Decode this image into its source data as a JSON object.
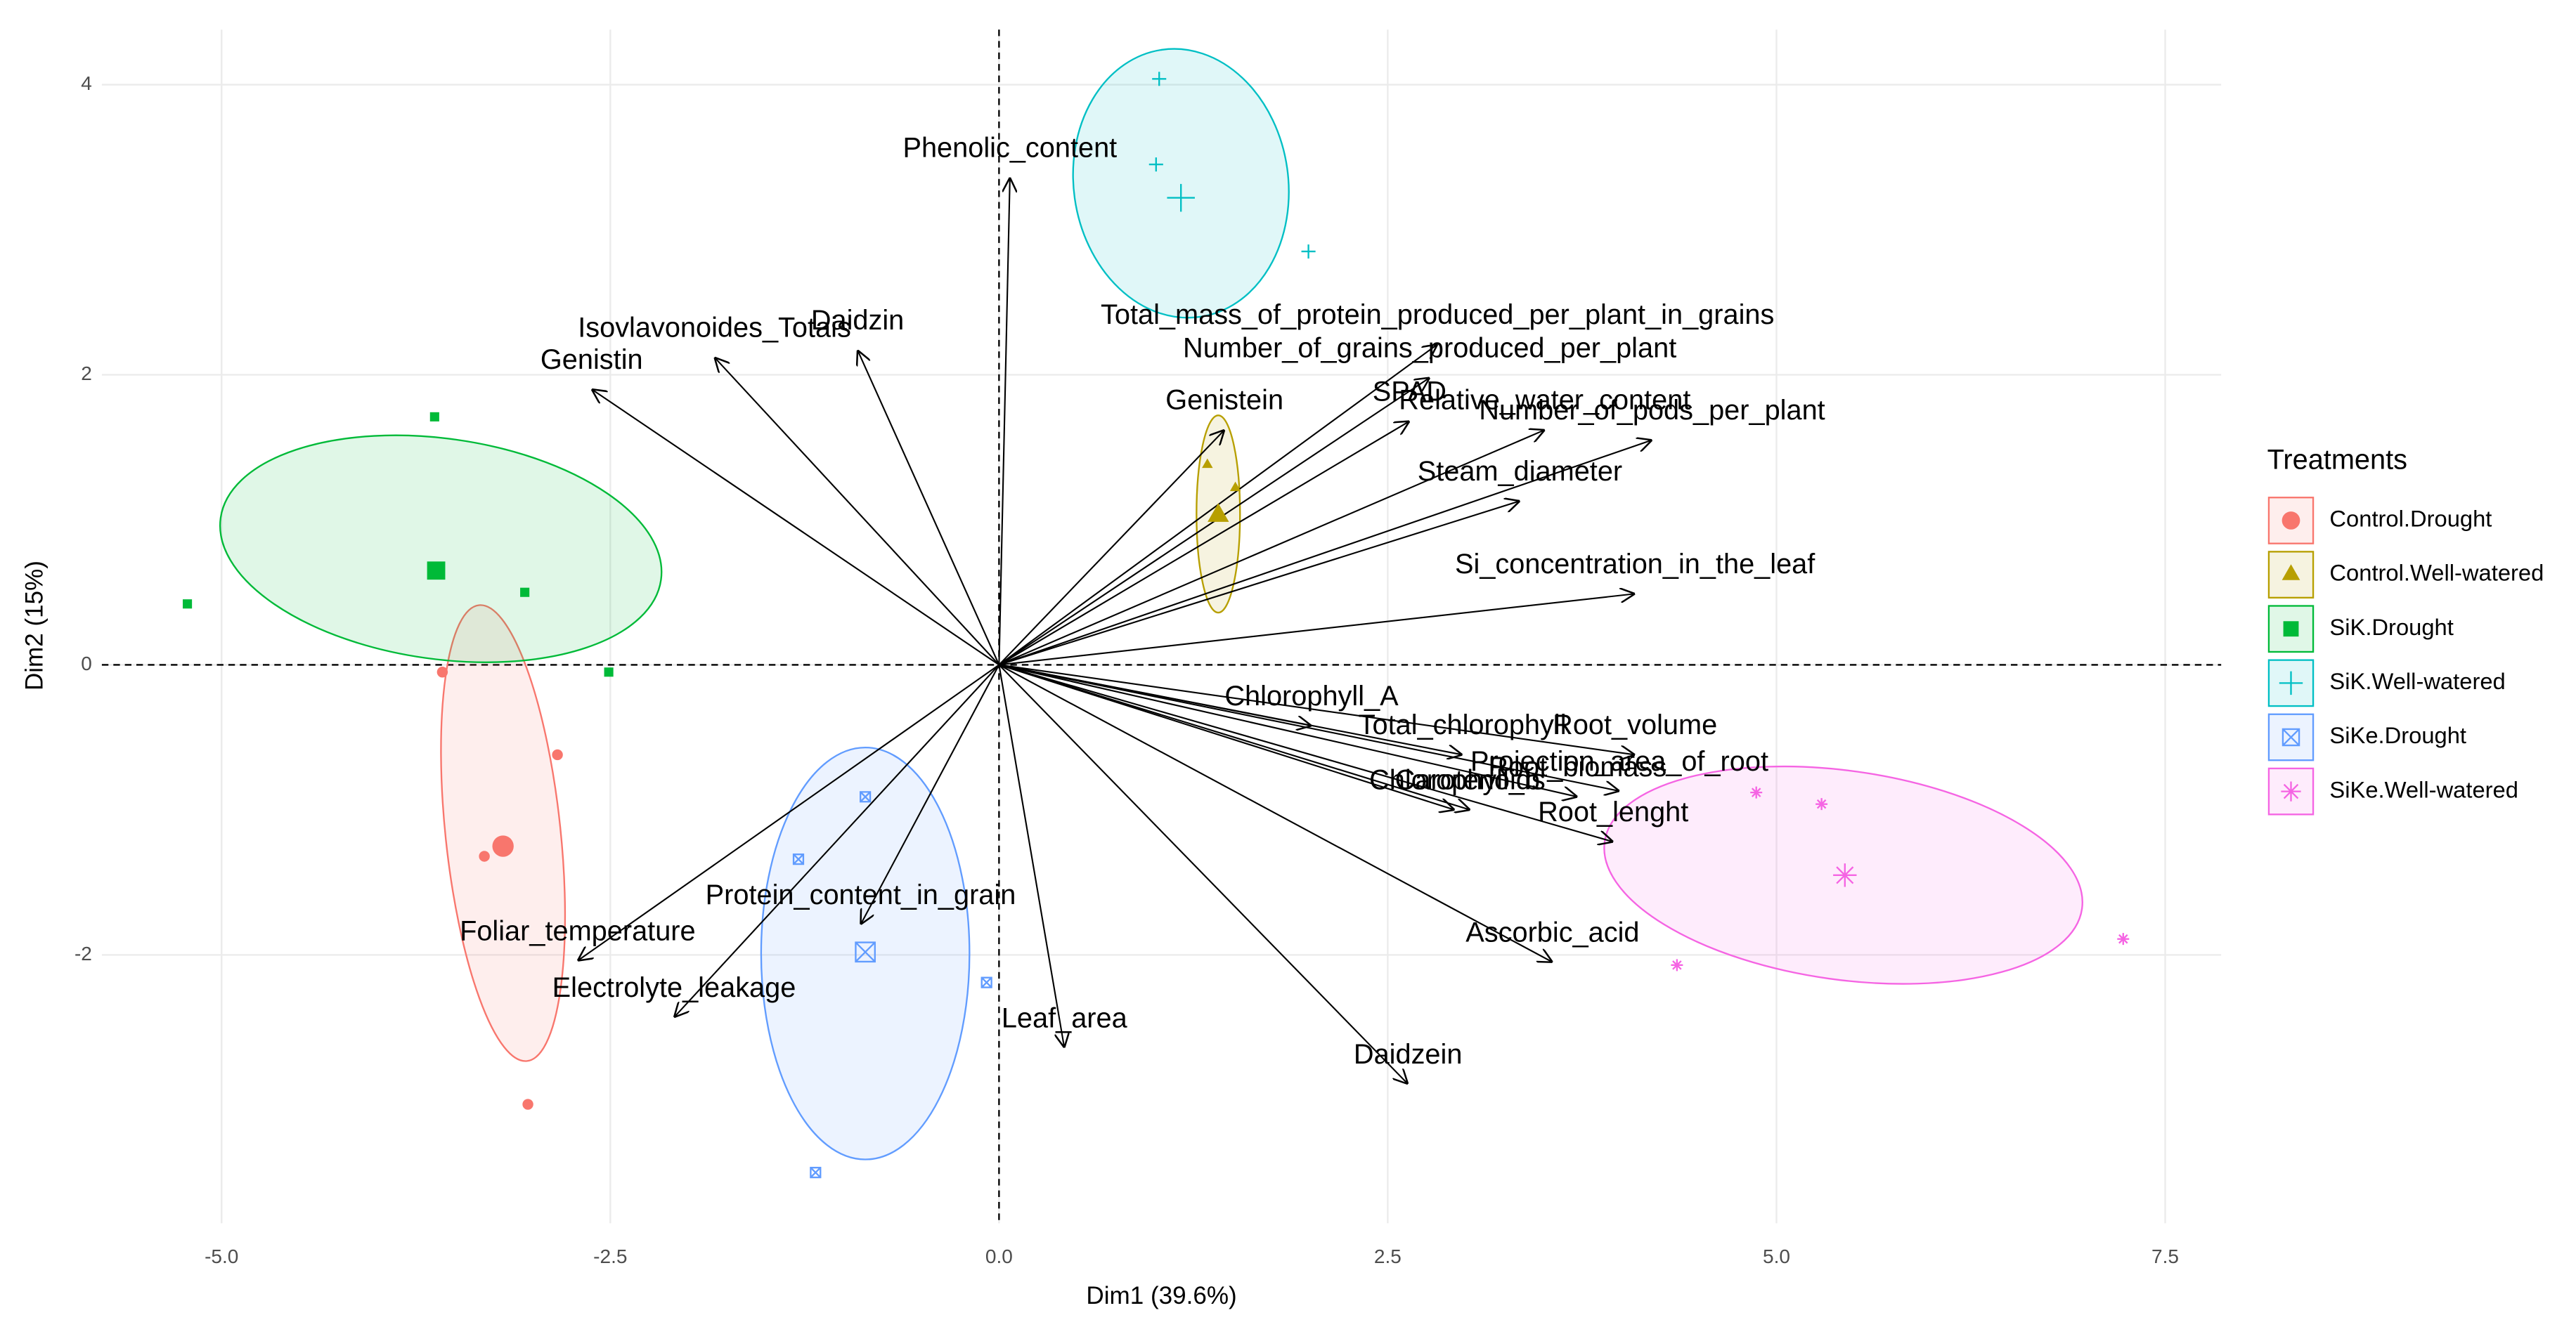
{
  "chart_data": {
    "type": "biplot",
    "x_label": "Dim1 (39.6%)",
    "y_label": "Dim2 (15%)",
    "xlim": [
      -5.77,
      7.86
    ],
    "ylim": [
      -3.85,
      4.38
    ],
    "xticks": [
      {
        "value": -5,
        "label": "-5.0"
      },
      {
        "value": -2.5,
        "label": "-2.5"
      },
      {
        "value": 0,
        "label": "0.0"
      },
      {
        "value": 2.5,
        "label": "2.5"
      },
      {
        "value": 5,
        "label": "5.0"
      },
      {
        "value": 7.5,
        "label": "7.5"
      }
    ],
    "yticks": [
      -2,
      0,
      2,
      4
    ],
    "grid": true,
    "legend_title": "Treatments",
    "legend_position": "right",
    "series": [
      {
        "name": "Control.Drought",
        "color": "#F8766D",
        "shape": "circle",
        "x": [
          -3.58,
          -2.84,
          -3.31,
          -3.03
        ],
        "y": [
          -0.05,
          -0.62,
          -1.32,
          -3.03
        ],
        "centroid": {
          "x": -3.19,
          "y": -1.25
        },
        "ellipse": {
          "cx": -3.19,
          "cy": -1.16,
          "rx": 0.37,
          "ry": 1.58,
          "angle": -6
        }
      },
      {
        "name": "Control.Well-watered",
        "color": "#B79F00",
        "shape": "triangle",
        "x": [
          1.34,
          1.52,
          1.41
        ],
        "y": [
          1.38,
          1.22,
          1.02
        ],
        "centroid": {
          "x": 1.41,
          "y": 1.03
        },
        "ellipse": {
          "cx": 1.41,
          "cy": 1.04,
          "rx": 0.14,
          "ry": 0.68,
          "angle": 0
        }
      },
      {
        "name": "SiK.Drought",
        "color": "#00BA38",
        "shape": "square",
        "x": [
          -3.63,
          -5.22,
          -3.05,
          -2.51
        ],
        "y": [
          1.71,
          0.42,
          0.5,
          -0.05
        ],
        "centroid": {
          "x": -3.62,
          "y": 0.65
        },
        "ellipse": {
          "cx": -3.59,
          "cy": 0.8,
          "rx": 1.43,
          "ry": 0.76,
          "angle": 8
        }
      },
      {
        "name": "SiK.Well-watered",
        "color": "#00BFC4",
        "shape": "plus",
        "x": [
          1.03,
          1.01,
          1.99
        ],
        "y": [
          4.04,
          3.45,
          2.85
        ],
        "centroid": {
          "x": 1.17,
          "y": 3.22
        },
        "ellipse": {
          "cx": 1.17,
          "cy": 3.32,
          "rx": 0.69,
          "ry": 0.93,
          "angle": -8
        }
      },
      {
        "name": "SiKe.Drought",
        "color": "#619CFF",
        "shape": "square-cross",
        "x": [
          -0.86,
          -1.29,
          -0.08,
          -1.18
        ],
        "y": [
          -0.91,
          -1.34,
          -2.19,
          -3.5
        ],
        "centroid": {
          "x": -0.86,
          "y": -1.98
        },
        "ellipse": {
          "cx": -0.86,
          "cy": -1.99,
          "rx": 0.67,
          "ry": 1.42,
          "angle": 0
        }
      },
      {
        "name": "SiKe.Well-watered",
        "color": "#F564E3",
        "shape": "asterisk",
        "x": [
          4.87,
          5.29,
          4.36,
          7.23
        ],
        "y": [
          -0.88,
          -0.96,
          -2.07,
          -1.89
        ],
        "centroid": {
          "x": 5.44,
          "y": -1.45
        },
        "ellipse": {
          "cx": 5.43,
          "cy": -1.45,
          "rx": 1.55,
          "ry": 0.72,
          "angle": 8
        }
      }
    ],
    "variables": [
      {
        "name": "Phenolic_content",
        "x": 0.07,
        "y": 3.36
      },
      {
        "name": "Isovlavonoides_Totais",
        "x": -1.83,
        "y": 2.12
      },
      {
        "name": "Daidzin",
        "x": -0.91,
        "y": 2.17
      },
      {
        "name": "Genistin",
        "x": -2.62,
        "y": 1.9
      },
      {
        "name": "Total_mass_of_protein_produced_per_plant_in_grains",
        "x": 2.82,
        "y": 2.21
      },
      {
        "name": "Number_of_grains_produced_per_plant",
        "x": 2.77,
        "y": 1.98
      },
      {
        "name": "SPAD",
        "x": 2.64,
        "y": 1.68
      },
      {
        "name": "Relative_water_content",
        "x": 3.51,
        "y": 1.62
      },
      {
        "name": "Number_of_pods_per_plant",
        "x": 4.2,
        "y": 1.55
      },
      {
        "name": "Genistein",
        "x": 1.45,
        "y": 1.62
      },
      {
        "name": "Steam_diameter",
        "x": 3.35,
        "y": 1.13
      },
      {
        "name": "Si_concentration_in_the_leaf",
        "x": 4.09,
        "y": 0.49
      },
      {
        "name": "Chlorophyll_A",
        "x": 2.01,
        "y": -0.42
      },
      {
        "name": "Total_chlorophyll",
        "x": 2.98,
        "y": -0.62
      },
      {
        "name": "Root_volume",
        "x": 4.09,
        "y": -0.62
      },
      {
        "name": "Projection_area_of_root",
        "x": 3.99,
        "y": -0.87
      },
      {
        "name": "Root_biomass",
        "x": 3.72,
        "y": -0.91
      },
      {
        "name": "Chlorophyll_b",
        "x": 2.93,
        "y": -1.0
      },
      {
        "name": "Carotenoids",
        "x": 3.03,
        "y": -1.0
      },
      {
        "name": "Root_lenght",
        "x": 3.95,
        "y": -1.22
      },
      {
        "name": "Ascorbic_acid",
        "x": 3.56,
        "y": -2.05
      },
      {
        "name": "Daidzein",
        "x": 2.63,
        "y": -2.89
      },
      {
        "name": "Leaf_area",
        "x": 0.42,
        "y": -2.64
      },
      {
        "name": "Protein_content_in_grain",
        "x": -0.89,
        "y": -1.79
      },
      {
        "name": "Foliar_temperature",
        "x": -2.71,
        "y": -2.04
      },
      {
        "name": "Electrolyte_leakage",
        "x": -2.09,
        "y": -2.43
      }
    ]
  }
}
